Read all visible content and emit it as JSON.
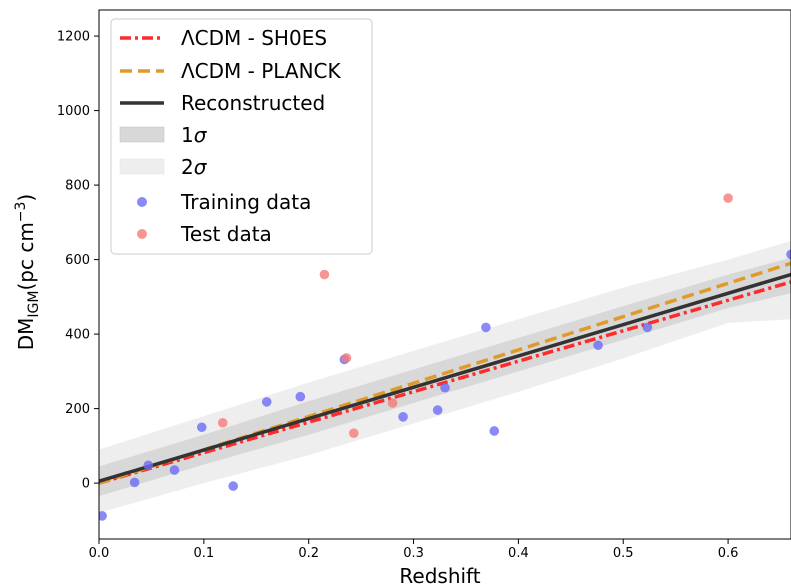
{
  "chart_data": {
    "type": "scatter",
    "title": "",
    "xlabel": "Redshift",
    "ylabel": {
      "main": "DM",
      "sub": "IGM",
      "unit": "(pc cm",
      "exp": "−3",
      "close": ")"
    },
    "xlim": [
      0.0,
      0.66
    ],
    "ylim": [
      -150,
      1270
    ],
    "xticks": [
      0.0,
      0.1,
      0.2,
      0.3,
      0.4,
      0.5,
      0.6
    ],
    "xtick_labels": [
      "0.0",
      "0.1",
      "0.2",
      "0.3",
      "0.4",
      "0.5",
      "0.6"
    ],
    "yticks": [
      0,
      200,
      400,
      600,
      800,
      1000,
      1200
    ],
    "ytick_labels": [
      "0",
      "200",
      "400",
      "600",
      "800",
      "1000",
      "1200"
    ],
    "grid": false,
    "legend_position": "top-left",
    "lines": [
      {
        "key": "sh0es",
        "name": "ΛCDM - SH0ES",
        "style": "dashdot",
        "color": "#ff2a2a",
        "x": [
          0.0,
          0.66
        ],
        "y": [
          0,
          540
        ]
      },
      {
        "key": "planck",
        "name": "ΛCDM - PLANCK",
        "style": "dashed",
        "color": "#e09a2a",
        "x": [
          0.0,
          0.66
        ],
        "y": [
          0,
          590
        ]
      },
      {
        "key": "reconstructed",
        "name": "Reconstructed",
        "style": "solid",
        "color": "#333333",
        "x": [
          0.0,
          0.66
        ],
        "y": [
          5,
          560
        ]
      }
    ],
    "bands": [
      {
        "key": "sigma2",
        "name": "2σ",
        "color": "#eeeeee",
        "x": [
          0.0,
          0.1,
          0.2,
          0.3,
          0.4,
          0.5,
          0.6,
          0.66
        ],
        "upper": [
          90,
          180,
          270,
          355,
          440,
          525,
          600,
          650
        ],
        "lower": [
          -80,
          0,
          75,
          160,
          245,
          335,
          430,
          440
        ]
      },
      {
        "key": "sigma1",
        "name": "1σ",
        "color": "#d8d8d8",
        "x": [
          0.0,
          0.1,
          0.2,
          0.3,
          0.4,
          0.5,
          0.6,
          0.66
        ],
        "upper": [
          45,
          130,
          220,
          305,
          390,
          475,
          560,
          605
        ],
        "lower": [
          -35,
          50,
          130,
          215,
          300,
          385,
          470,
          510
        ]
      }
    ],
    "series": [
      {
        "key": "training",
        "name": "Training data",
        "color": "#6b6bf5",
        "points": [
          [
            0.003,
            -88
          ],
          [
            0.034,
            2
          ],
          [
            0.047,
            48
          ],
          [
            0.072,
            35
          ],
          [
            0.098,
            150
          ],
          [
            0.128,
            -8
          ],
          [
            0.16,
            218
          ],
          [
            0.192,
            232
          ],
          [
            0.234,
            332
          ],
          [
            0.29,
            178
          ],
          [
            0.323,
            196
          ],
          [
            0.33,
            256
          ],
          [
            0.369,
            418
          ],
          [
            0.377,
            140
          ],
          [
            0.476,
            370
          ],
          [
            0.523,
            418
          ],
          [
            0.66,
            614
          ]
        ]
      },
      {
        "key": "test",
        "name": "Test data",
        "color": "#f57a7a",
        "points": [
          [
            0.118,
            162
          ],
          [
            0.215,
            560
          ],
          [
            0.236,
            336
          ],
          [
            0.243,
            134
          ],
          [
            0.28,
            215
          ],
          [
            0.6,
            765
          ]
        ]
      }
    ],
    "legend": [
      {
        "key": "sh0es",
        "label": "ΛCDM - SH0ES"
      },
      {
        "key": "planck",
        "label": "ΛCDM - PLANCK"
      },
      {
        "key": "reconstructed",
        "label": "Reconstructed"
      },
      {
        "key": "sigma1",
        "label": "1",
        "italic": "σ"
      },
      {
        "key": "sigma2",
        "label": "2",
        "italic": "σ"
      },
      {
        "key": "training",
        "label": "Training data"
      },
      {
        "key": "test",
        "label": "Test data"
      }
    ]
  }
}
